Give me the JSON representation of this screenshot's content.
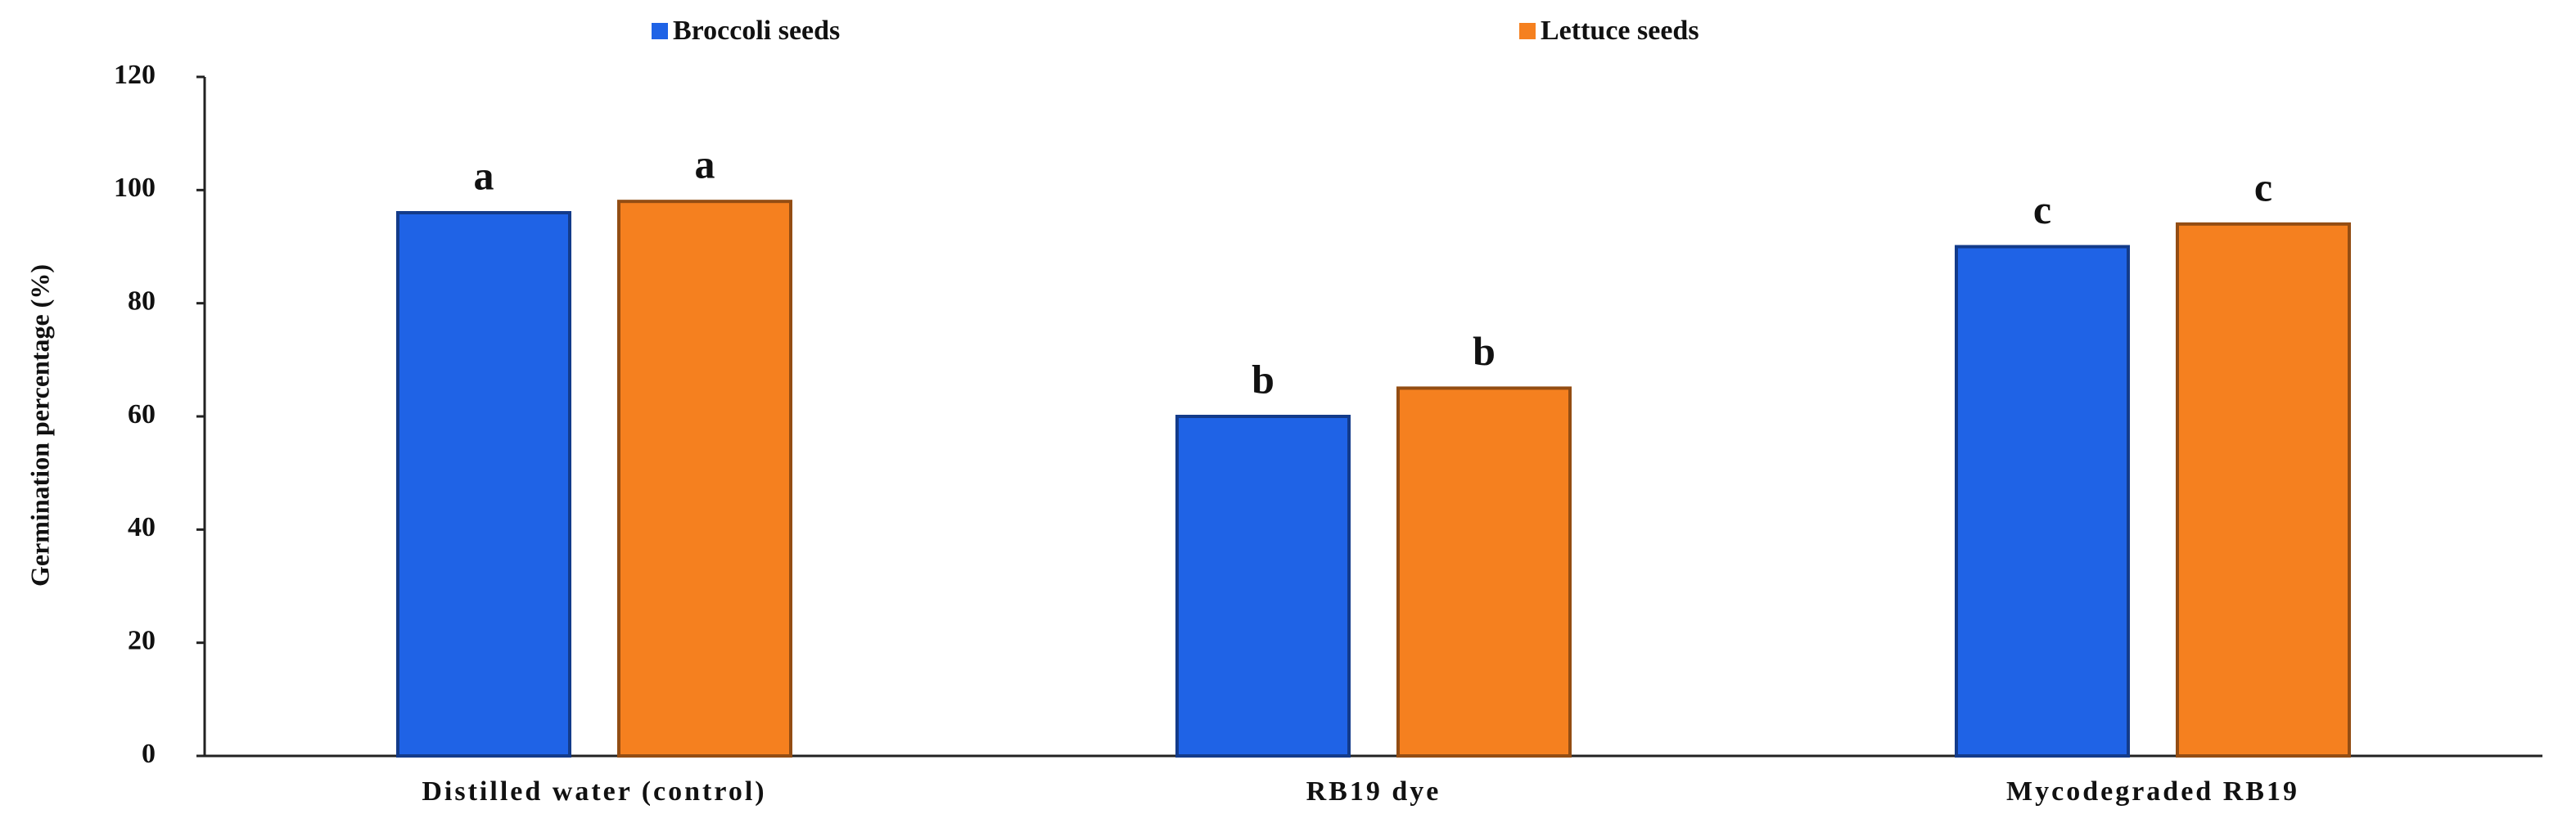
{
  "chart_data": {
    "type": "bar",
    "y_label": "Germination percentage (%)",
    "categories": [
      "Distilled water (control)",
      "RB19 dye",
      "Mycodegraded RB19"
    ],
    "series": [
      {
        "name": "Broccoli seeds",
        "color": "#1f63e6",
        "values": [
          96,
          60,
          90
        ],
        "annotations": [
          "a",
          "b",
          "c"
        ]
      },
      {
        "name": "Lettuce seeds",
        "color": "#f5801f",
        "values": [
          98,
          65,
          94
        ],
        "annotations": [
          "a",
          "b",
          "c"
        ]
      }
    ],
    "ylim": [
      0,
      120
    ],
    "yticks": [
      0,
      20,
      40,
      60,
      80,
      100,
      120
    ],
    "grid": false,
    "legend": "top"
  }
}
